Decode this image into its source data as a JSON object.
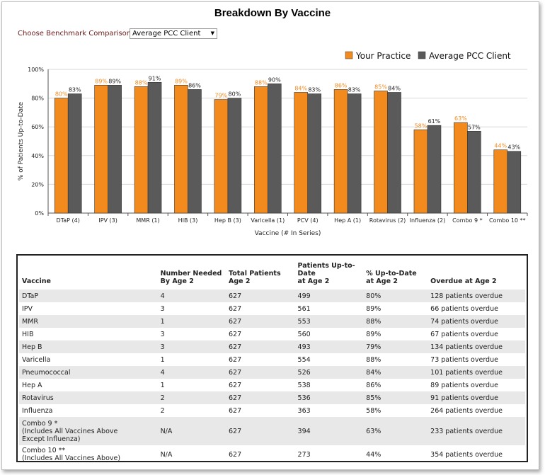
{
  "title": "Breakdown By Vaccine",
  "benchmark": {
    "label": "Choose Benchmark Comparison:",
    "selected": "Average PCC Client"
  },
  "colors": {
    "practice": "#f28a1e",
    "benchmark": "#5a5a5a",
    "practice_label": "#f28a1e"
  },
  "chart_data": {
    "type": "bar",
    "categories": [
      "DTaP (4)",
      "IPV (3)",
      "MMR (1)",
      "HIB (3)",
      "Hep B (3)",
      "Varicella (1)",
      "PCV (4)",
      "Hep A (1)",
      "Rotavirus (2)",
      "Influenza (2)",
      "Combo 9 *",
      "Combo 10 **"
    ],
    "series": [
      {
        "name": "Your Practice",
        "values": [
          80,
          89,
          88,
          89,
          79,
          88,
          84,
          86,
          85,
          58,
          63,
          44
        ]
      },
      {
        "name": "Average PCC Client",
        "values": [
          83,
          89,
          91,
          86,
          80,
          90,
          83,
          83,
          84,
          61,
          57,
          43
        ]
      }
    ],
    "xlabel": "Vaccine (# In Series)",
    "ylabel": "% of Patients Up-to-Date",
    "ylim": [
      0,
      100
    ],
    "yticks": [
      "0%",
      "20%",
      "40%",
      "60%",
      "80%",
      "100%"
    ],
    "grid": true,
    "legend_position": "top-right"
  },
  "table": {
    "headers": [
      "Vaccine",
      "Number Needed\nBy Age 2",
      "Total Patients\nAge 2",
      "Patients Up-to-\nDate\nat Age 2",
      "% Up-to-Date\nat Age 2",
      "Overdue at Age 2"
    ],
    "rows": [
      [
        "DTaP",
        "4",
        "627",
        "499",
        "80%",
        "128 patients overdue"
      ],
      [
        "IPV",
        "3",
        "627",
        "561",
        "89%",
        "66 patients overdue"
      ],
      [
        "MMR",
        "1",
        "627",
        "553",
        "88%",
        "74 patients overdue"
      ],
      [
        "HIB",
        "3",
        "627",
        "560",
        "89%",
        "67 patients overdue"
      ],
      [
        "Hep B",
        "3",
        "627",
        "493",
        "79%",
        "134 patients overdue"
      ],
      [
        "Varicella",
        "1",
        "627",
        "554",
        "88%",
        "73 patients overdue"
      ],
      [
        "Pneumococcal",
        "4",
        "627",
        "526",
        "84%",
        "101 patients overdue"
      ],
      [
        "Hep A",
        "1",
        "627",
        "538",
        "86%",
        "89 patients overdue"
      ],
      [
        "Rotavirus",
        "2",
        "627",
        "536",
        "85%",
        "91 patients overdue"
      ],
      [
        "Influenza",
        "2",
        "627",
        "363",
        "58%",
        "264 patients overdue"
      ],
      [
        "Combo 9 *\n(Includes All Vaccines Above\nExcept Influenza)",
        "N/A",
        "627",
        "394",
        "63%",
        "233 patients overdue"
      ],
      [
        "Combo 10 **\n(Includes All Vaccines Above)",
        "N/A",
        "627",
        "273",
        "44%",
        "354 patients overdue"
      ]
    ]
  }
}
